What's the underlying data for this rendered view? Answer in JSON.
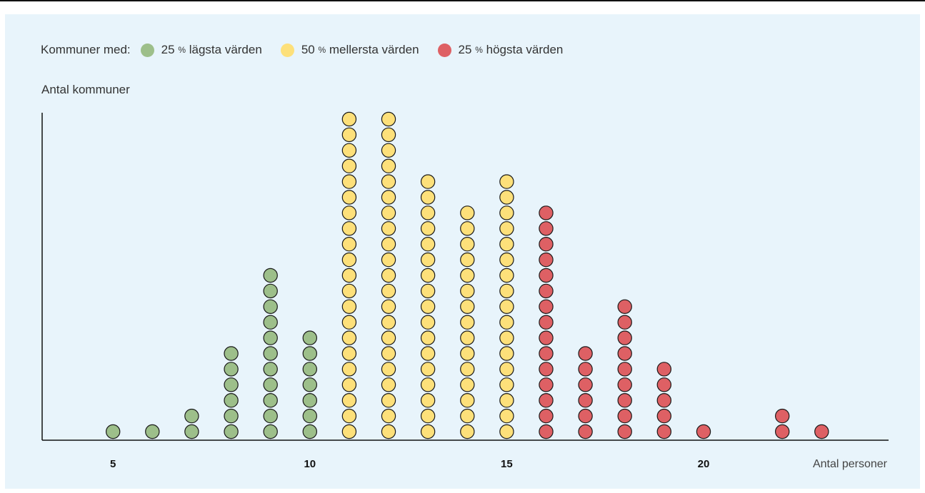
{
  "legend": {
    "lead": "Kommuner med:",
    "items": [
      {
        "pre": "25",
        "pct": "%",
        "text": "lägsta värden",
        "color": "#9dbf8a"
      },
      {
        "pre": "50",
        "pct": "%",
        "text": "mellersta värden",
        "color": "#fde07a"
      },
      {
        "pre": "25",
        "pct": "%",
        "text": "högsta värden",
        "color": "#de6064"
      }
    ]
  },
  "chart_data": {
    "type": "scatter",
    "ylabel": "Antal kommuner",
    "xlabel": "Antal personer",
    "x_ticks": [
      5,
      10,
      15,
      20
    ],
    "xlim": [
      3.2,
      24.7
    ],
    "columns": [
      {
        "x": 5,
        "count": 1,
        "group": 0
      },
      {
        "x": 6,
        "count": 1,
        "group": 0
      },
      {
        "x": 7,
        "count": 2,
        "group": 0
      },
      {
        "x": 8,
        "count": 6,
        "group": 0
      },
      {
        "x": 9,
        "count": 11,
        "group": 0
      },
      {
        "x": 10,
        "count": 7,
        "group": 0
      },
      {
        "x": 11,
        "count": 21,
        "group": 1
      },
      {
        "x": 12,
        "count": 21,
        "group": 1
      },
      {
        "x": 13,
        "count": 17,
        "group": 1
      },
      {
        "x": 14,
        "count": 15,
        "group": 1
      },
      {
        "x": 15,
        "count": 17,
        "group": 1
      },
      {
        "x": 16,
        "count": 15,
        "group": 2
      },
      {
        "x": 17,
        "count": 6,
        "group": 2
      },
      {
        "x": 18,
        "count": 9,
        "group": 2
      },
      {
        "x": 19,
        "count": 5,
        "group": 2
      },
      {
        "x": 20,
        "count": 1,
        "group": 2
      },
      {
        "x": 22,
        "count": 2,
        "group": 2
      },
      {
        "x": 23,
        "count": 1,
        "group": 2
      }
    ],
    "colors": {
      "fill": [
        "#9dbf8a",
        "#fde07a",
        "#de6064"
      ],
      "stroke": "#1a1a1a"
    }
  }
}
